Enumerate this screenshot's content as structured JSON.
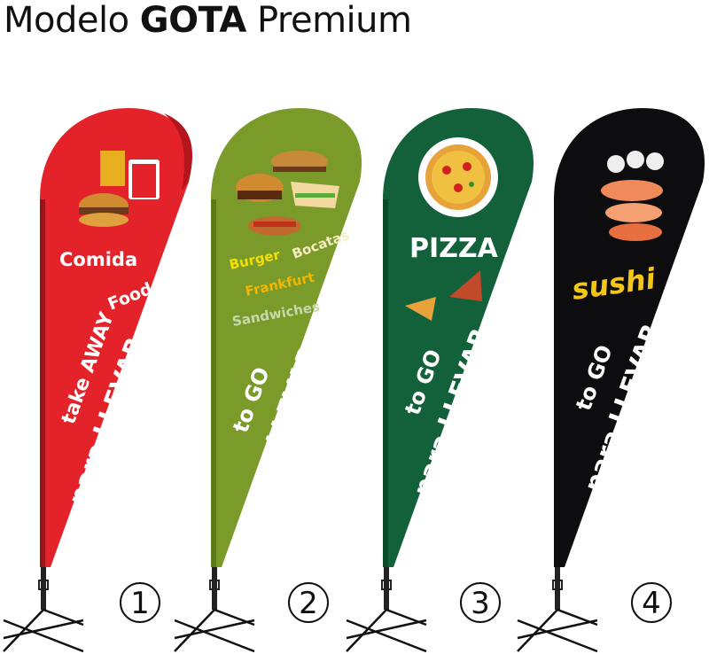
{
  "title": {
    "prefix": "Modelo",
    "bold": "GOTA",
    "suffix": "Premium"
  },
  "flags": [
    {
      "number": "1",
      "color": "#e32229",
      "lines": [
        "Comida",
        "Food",
        "take AWAY",
        "para LLEVAR"
      ],
      "icon": "fast-food-icon"
    },
    {
      "number": "2",
      "color": "#7a9a2a",
      "lines": [
        "Burger",
        "Bocatas",
        "Frankfurt",
        "Sandwiches",
        "to GO",
        "para LLEVAR"
      ],
      "icon": "burger-sandwich-icon"
    },
    {
      "number": "3",
      "color": "#12613a",
      "lines": [
        "PIZZA",
        "to GO",
        "para LLEVAR"
      ],
      "icon": "pizza-icon"
    },
    {
      "number": "4",
      "color": "#0d0d10",
      "lines": [
        "sushi",
        "to GO",
        "para LLEVAR"
      ],
      "icon": "sushi-icon"
    }
  ],
  "colors": {
    "burger": "#f5e100",
    "frankfurt": "#f2b705",
    "bocatas": "#f5efc0",
    "sandwiches": "#c8d8a8",
    "sushi": "#f5c518"
  }
}
